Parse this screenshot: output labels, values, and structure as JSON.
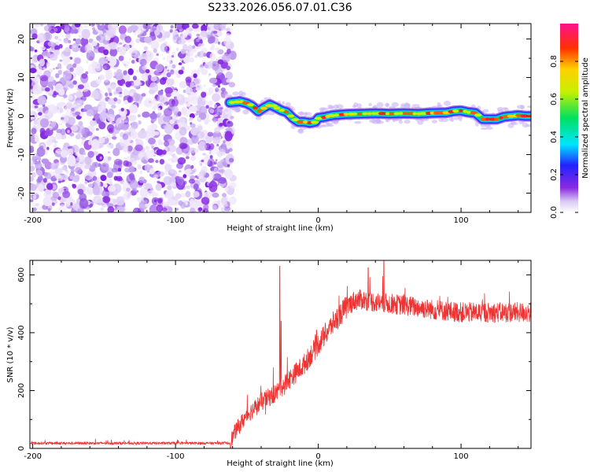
{
  "title": "S233.2026.056.07.01.C36",
  "colors": {
    "trace": "#ee3333",
    "axis": "#000000",
    "background": "#ffffff",
    "noise": "#8a2be2"
  },
  "chart_data": [
    {
      "type": "heatmap",
      "name": "spectrogram",
      "xlabel": "Height of straight line (km)",
      "ylabel": "Frequency (Hz)",
      "xlim": [
        -202,
        149
      ],
      "ylim": [
        -25,
        24
      ],
      "xticks": [
        -200,
        -100,
        0,
        100
      ],
      "yticks": [
        -20,
        -10,
        0,
        10,
        20
      ],
      "noise_region_x": [
        -202,
        -62
      ],
      "colorbar": {
        "label": "Normalized spectral amplitude",
        "range": [
          0,
          1
        ],
        "ticks": [
          0.0,
          0.2,
          0.4,
          0.6,
          0.8
        ],
        "tick_labels": [
          "0.0",
          "0.2",
          "0.4",
          "0.6",
          "0.8"
        ]
      },
      "carrier": {
        "x": [
          -62,
          -55,
          -50,
          -46,
          -42,
          -38,
          -34,
          -30,
          -26,
          -22,
          -18,
          -14,
          -10,
          -6,
          -2,
          0,
          5,
          10,
          20,
          30,
          40,
          50,
          60,
          70,
          80,
          90,
          95,
          100,
          105,
          110,
          112,
          115,
          118,
          125,
          130,
          135,
          140,
          145,
          149
        ],
        "y": [
          3.5,
          3.8,
          3.3,
          2.5,
          1.2,
          2.2,
          3.0,
          2.3,
          1.5,
          1.0,
          -0.5,
          -1.5,
          -1.5,
          -1.8,
          -1.5,
          -0.5,
          -0.2,
          0.2,
          0.5,
          0.6,
          0.7,
          0.6,
          0.7,
          0.6,
          0.8,
          0.9,
          1.3,
          1.4,
          1.0,
          0.8,
          0.2,
          -0.8,
          -0.8,
          -0.8,
          -0.2,
          0.0,
          0.2,
          0.0,
          0.0
        ]
      }
    },
    {
      "type": "line",
      "name": "snr",
      "xlabel": "Height of straight line (km)",
      "ylabel": "SNR (10 * v/v)",
      "xlim": [
        -202,
        149
      ],
      "ylim": [
        0,
        650
      ],
      "xticks": [
        -200,
        -100,
        0,
        100
      ],
      "yticks": [
        0,
        200,
        400,
        600
      ],
      "envelope": {
        "x": [
          -202,
          -62,
          -58,
          -50,
          -40,
          -30,
          -20,
          -10,
          0,
          10,
          20,
          25,
          30,
          40,
          50,
          60,
          80,
          100,
          120,
          140,
          149
        ],
        "y": [
          18,
          18,
          60,
          115,
          160,
          190,
          240,
          290,
          360,
          430,
          490,
          510,
          515,
          505,
          500,
          495,
          480,
          470,
          470,
          470,
          470
        ]
      },
      "spikes": [
        {
          "x": -27,
          "y": 630
        },
        {
          "x": -26,
          "y": 440
        },
        {
          "x": 35,
          "y": 625
        },
        {
          "x": 46,
          "y": 648
        }
      ]
    }
  ]
}
